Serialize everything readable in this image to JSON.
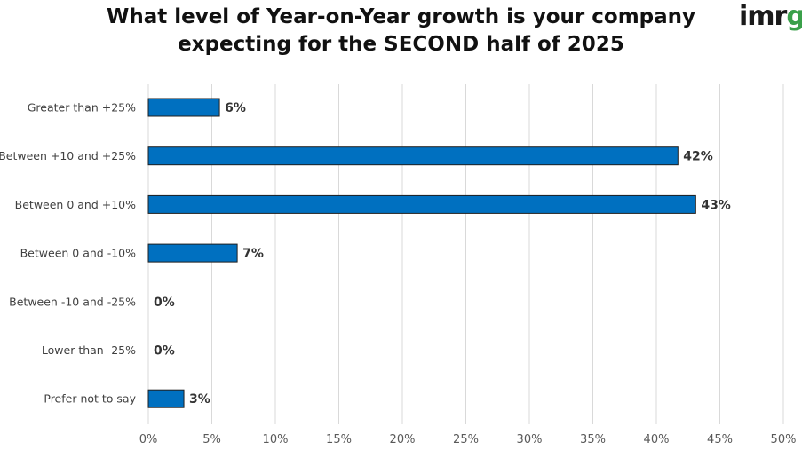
{
  "logo": {
    "part1": "imr",
    "part2": "g",
    "accent": "#3aa04a"
  },
  "chart_data": {
    "type": "bar",
    "orientation": "horizontal",
    "title_lines": [
      "What level of Year-on-Year growth is your company",
      "expecting for the SECOND half of 2025"
    ],
    "categories": [
      "Greater than +25%",
      "Between +10 and +25%",
      "Between 0 and +10%",
      "Between 0 and -10%",
      "Between -10 and -25%",
      "Lower than -25%",
      "Prefer not to say"
    ],
    "values": [
      5.6,
      41.7,
      43.1,
      7.0,
      0,
      0,
      2.8
    ],
    "value_labels": [
      "6%",
      "42%",
      "43%",
      "7%",
      "0%",
      "0%",
      "3%"
    ],
    "xlim": [
      0,
      50
    ],
    "xticks": [
      0,
      5,
      10,
      15,
      20,
      25,
      30,
      35,
      40,
      45,
      50
    ],
    "xtick_labels": [
      "0%",
      "5%",
      "10%",
      "15%",
      "20%",
      "25%",
      "30%",
      "35%",
      "40%",
      "45%",
      "50%"
    ],
    "grid": true,
    "bar_color": "#0070c0",
    "bar_border": "#1f1f1f"
  }
}
